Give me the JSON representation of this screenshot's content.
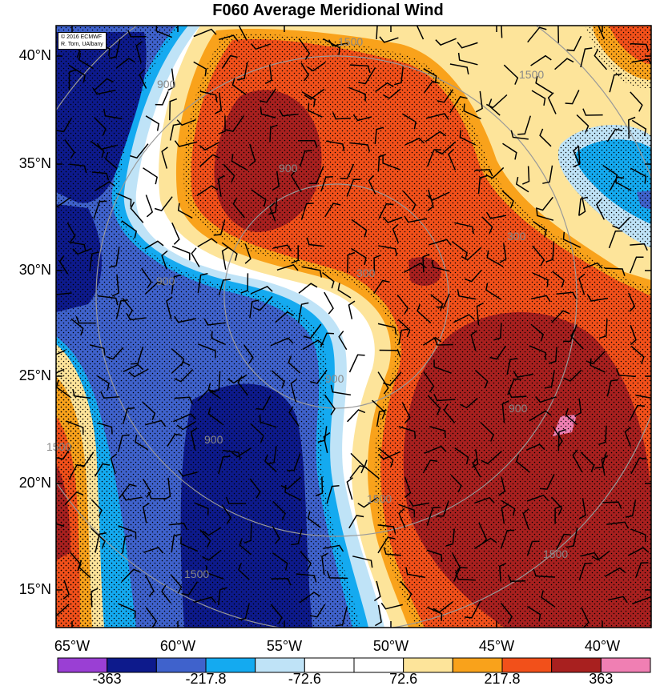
{
  "title": "F060 Average Meridional Wind",
  "credit": {
    "line1": "© 2016 ECMWF",
    "line2": "R. Torn, UAlbany"
  },
  "lat_labels": [
    "40°N",
    "35°N",
    "30°N",
    "25°N",
    "20°N",
    "15°N"
  ],
  "lon_labels": [
    "65°W",
    "60°W",
    "55°W",
    "50°W",
    "45°W",
    "40°W"
  ],
  "range_ring_labels": [
    "1500",
    "1500",
    "900",
    "900",
    "300",
    "300",
    "900",
    "900",
    "900",
    "900",
    "1500",
    "1500",
    "1500",
    "1500"
  ],
  "colorbar": {
    "labels": [
      "-363",
      "-217.8",
      "-72.6",
      "72.6",
      "217.8",
      "363"
    ],
    "colors": [
      "#9a3fd4",
      "#0d1a8c",
      "#3f62cc",
      "#14aaf0",
      "#bfe3f7",
      "#ffffff",
      "#ffffff",
      "#fde49a",
      "#f9a21b",
      "#f2501a",
      "#a8201f",
      "#f07fb3"
    ]
  },
  "map_colors": {
    "strong_neg": "#0d1a8c",
    "mod_neg": "#3f62cc",
    "weak_neg": "#14aaf0",
    "faint_neg": "#bfe3f7",
    "neutral": "#ffffff",
    "faint_pos": "#fde49a",
    "weak_pos": "#f9a21b",
    "mod_pos": "#f2501a",
    "strong_pos": "#a8201f",
    "extreme_pos": "#f07fb3",
    "ring": "#999999",
    "barb": "#000000"
  }
}
